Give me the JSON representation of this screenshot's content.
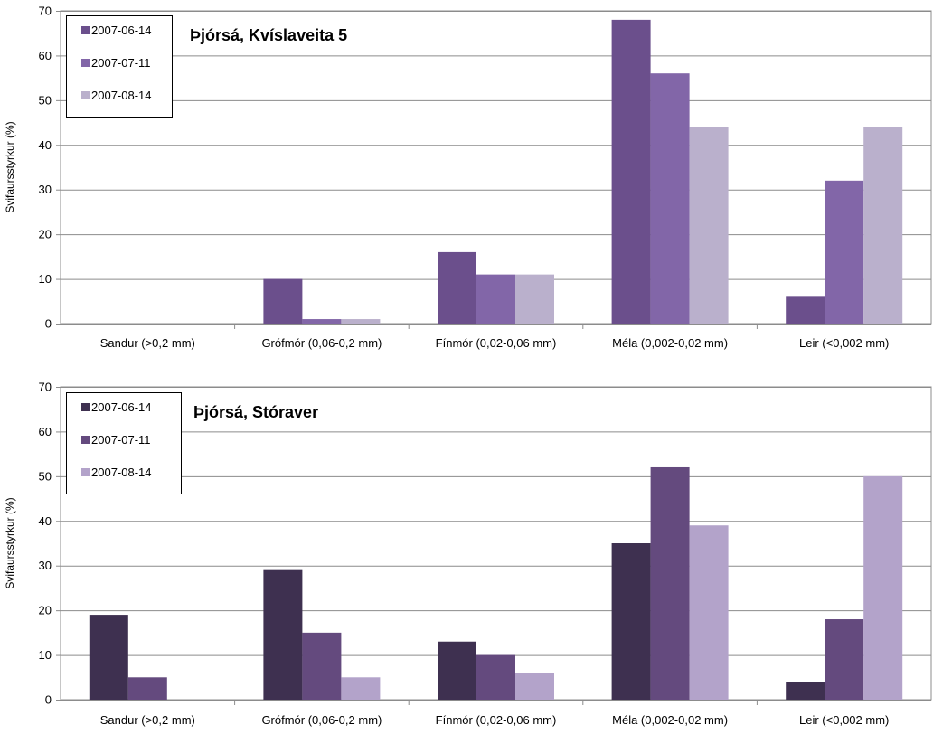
{
  "chart_data": [
    {
      "type": "bar",
      "title": "Þjórsá, Kvíslaveita 5",
      "ylabel": "Svifaursstyrkur (%)",
      "xlabel": "",
      "ylim": [
        0,
        70
      ],
      "yticks": [
        0,
        10,
        20,
        30,
        40,
        50,
        60,
        70
      ],
      "grid": true,
      "legend_position": "top-left",
      "categories": [
        "Sandur (>0,2 mm)",
        "Grófmór (0,06-0,2 mm)",
        "Fínmór (0,02-0,06  mm)",
        "Méla (0,002-0,02  mm)",
        "Leir (<0,002 mm)"
      ],
      "series": [
        {
          "name": "2007-06-14",
          "color": "#6b4f8c",
          "values": [
            0,
            10,
            16,
            68,
            6
          ]
        },
        {
          "name": "2007-07-11",
          "color": "#8266a8",
          "values": [
            0,
            1,
            11,
            56,
            32
          ]
        },
        {
          "name": "2007-08-14",
          "color": "#bab0cc",
          "values": [
            0,
            1,
            11,
            44,
            44
          ]
        }
      ]
    },
    {
      "type": "bar",
      "title": "Þjórsá, Stóraver",
      "ylabel": "Svifaursstyrkur (%)",
      "xlabel": "",
      "ylim": [
        0,
        70
      ],
      "yticks": [
        0,
        10,
        20,
        30,
        40,
        50,
        60,
        70
      ],
      "grid": true,
      "legend_position": "top-left",
      "categories": [
        "Sandur (>0,2 mm)",
        "Grófmór (0,06-0,2 mm)",
        "Fínmór (0,02-0,06  mm)",
        "Méla (0,002-0,02  mm)",
        "Leir (<0,002 mm)"
      ],
      "series": [
        {
          "name": "2007-06-14",
          "color": "#3e3050",
          "values": [
            19,
            29,
            13,
            35,
            4
          ]
        },
        {
          "name": "2007-07-11",
          "color": "#644a7e",
          "values": [
            5,
            15,
            10,
            52,
            18
          ]
        },
        {
          "name": "2007-08-14",
          "color": "#b3a3ca",
          "values": [
            0,
            5,
            6,
            39,
            50
          ]
        }
      ]
    }
  ]
}
